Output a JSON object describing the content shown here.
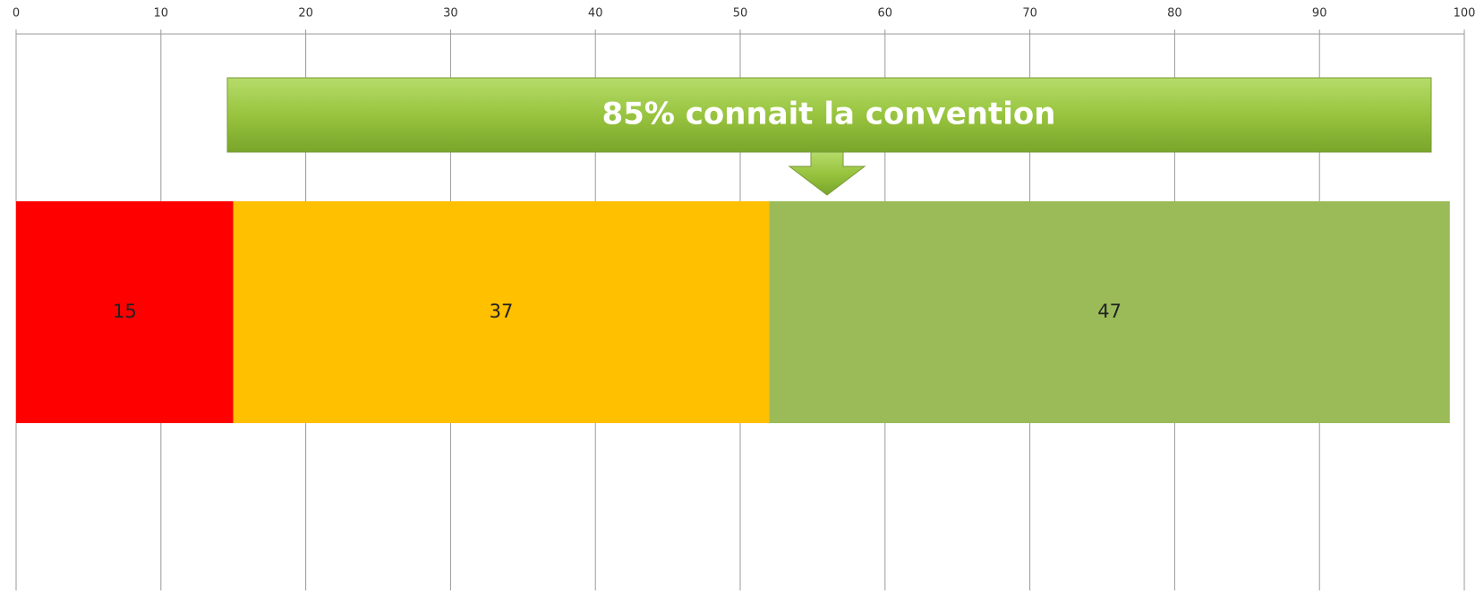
{
  "chart_data": {
    "type": "stacked_barh",
    "annotation": "85% connait la convention",
    "categories": [
      null
    ],
    "series": [
      {
        "color": "#ff0000",
        "values": [
          15
        ]
      },
      {
        "color": "#ffc000",
        "values": [
          37
        ]
      },
      {
        "color": "#9bbb59",
        "values": [
          47
        ]
      }
    ],
    "xlim": [
      0,
      100
    ],
    "xticks": [
      0,
      10,
      20,
      30,
      40,
      50,
      60,
      70,
      80,
      90,
      100
    ],
    "grid": true
  }
}
